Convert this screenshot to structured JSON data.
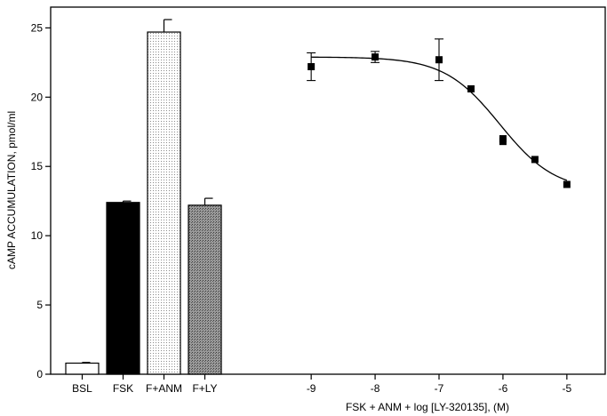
{
  "chart_data": {
    "type": "bar",
    "ylabel": "cAMP ACCUMULATION, pmol/ml",
    "xlabel": "FSK + ANM + log [LY-320135], (M)",
    "ylim": [
      0,
      26.5
    ],
    "yticks": [
      0,
      5,
      10,
      15,
      20,
      25
    ],
    "grid": false,
    "legend": "none",
    "bars": {
      "categories": [
        "BSL",
        "FSK",
        "F+ANM",
        "F+LY"
      ],
      "values": [
        0.8,
        12.4,
        24.7,
        12.2
      ],
      "errors": [
        0.05,
        0.1,
        0.9,
        0.5
      ],
      "fills": [
        "white",
        "black",
        "dotted-light",
        "dotted-dark"
      ]
    },
    "dose_response": {
      "type": "scatter",
      "xlim": [
        -9.6,
        -4.4
      ],
      "xticks": [
        -9,
        -8,
        -7,
        -6,
        -5
      ],
      "points": [
        {
          "x": -9,
          "y": 22.2,
          "err": 1.0
        },
        {
          "x": -8,
          "y": 22.9,
          "err": 0.4
        },
        {
          "x": -7,
          "y": 22.7,
          "err": 1.5
        },
        {
          "x": -6.5,
          "y": 20.6,
          "err": 0
        },
        {
          "x": -6,
          "y": 17.0,
          "err": 0
        },
        {
          "x": -6,
          "y": 16.8,
          "err": 0
        },
        {
          "x": -5.5,
          "y": 15.5,
          "err": 0
        },
        {
          "x": -5,
          "y": 13.7,
          "err": 0
        }
      ],
      "fit": {
        "top": 22.9,
        "bottom": 13.2,
        "log_ic50": -6.05,
        "hill": 1.0
      }
    }
  }
}
